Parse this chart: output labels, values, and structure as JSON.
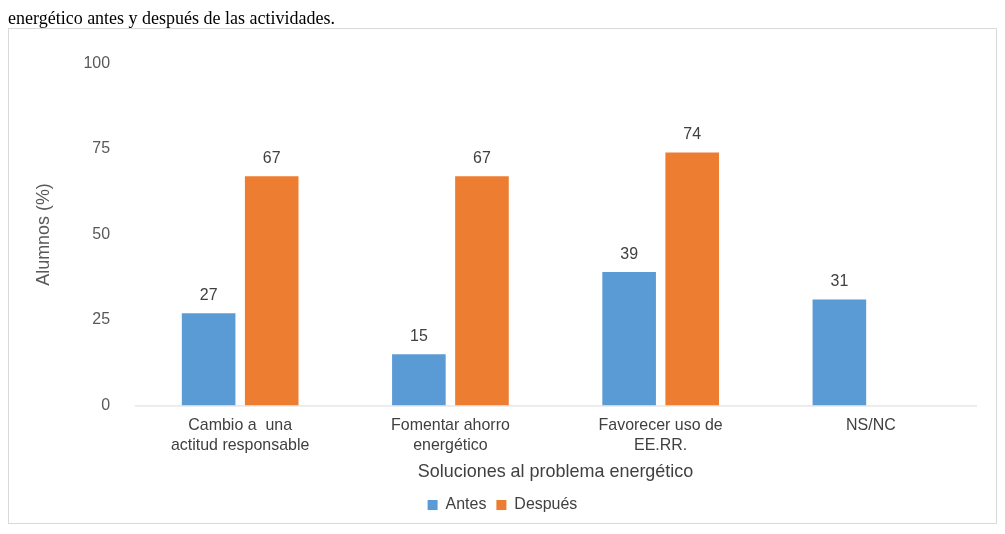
{
  "chart_data": {
    "type": "bar",
    "xlabel": "Soluciones al problema energético",
    "ylabel": "Alumnos (%)",
    "annotations": [
      "energético antes y después de las actividades."
    ],
    "categories": [
      "Cambio a  una\nactitud responsable",
      "Fomentar ahorro\nenergético",
      "Favorecer uso de\nEE.RR.",
      "NS/NC"
    ],
    "series": [
      {
        "name": "Antes",
        "color": "#5b9bd5",
        "values": [
          27,
          15,
          39,
          31
        ]
      },
      {
        "name": "Después",
        "color": "#ed7d31",
        "values": [
          67,
          67,
          74,
          null
        ]
      }
    ],
    "ylim": [
      0,
      100
    ],
    "yticks": [
      0,
      25,
      50,
      75,
      100
    ],
    "grid": false,
    "legend": "bottom",
    "data_labels": true
  }
}
